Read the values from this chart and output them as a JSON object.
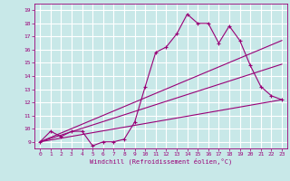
{
  "xlabel": "Windchill (Refroidissement éolien,°C)",
  "bg_color": "#c8e8e8",
  "grid_color": "#ffffff",
  "line_color": "#990077",
  "xlim": [
    -0.5,
    23.5
  ],
  "ylim": [
    8.5,
    19.5
  ],
  "xticks": [
    0,
    1,
    2,
    3,
    4,
    5,
    6,
    7,
    8,
    9,
    10,
    11,
    12,
    13,
    14,
    15,
    16,
    17,
    18,
    19,
    20,
    21,
    22,
    23
  ],
  "yticks": [
    9,
    10,
    11,
    12,
    13,
    14,
    15,
    16,
    17,
    18,
    19
  ],
  "line1_x": [
    0,
    1,
    2,
    3,
    4,
    5,
    6,
    7,
    8,
    9,
    10,
    11,
    12,
    13,
    14,
    15,
    16,
    17,
    18,
    19,
    20,
    21,
    22,
    23
  ],
  "line1_y": [
    9.0,
    9.8,
    9.4,
    9.8,
    9.8,
    8.7,
    9.0,
    9.0,
    9.2,
    10.5,
    13.2,
    15.8,
    16.2,
    17.2,
    18.7,
    18.0,
    18.0,
    16.5,
    17.8,
    16.7,
    14.8,
    13.2,
    12.5,
    12.2
  ],
  "line2_x": [
    0,
    23
  ],
  "line2_y": [
    9.0,
    16.7
  ],
  "line3_x": [
    0,
    23
  ],
  "line3_y": [
    9.0,
    14.9
  ],
  "line4_x": [
    0,
    23
  ],
  "line4_y": [
    9.0,
    12.2
  ]
}
